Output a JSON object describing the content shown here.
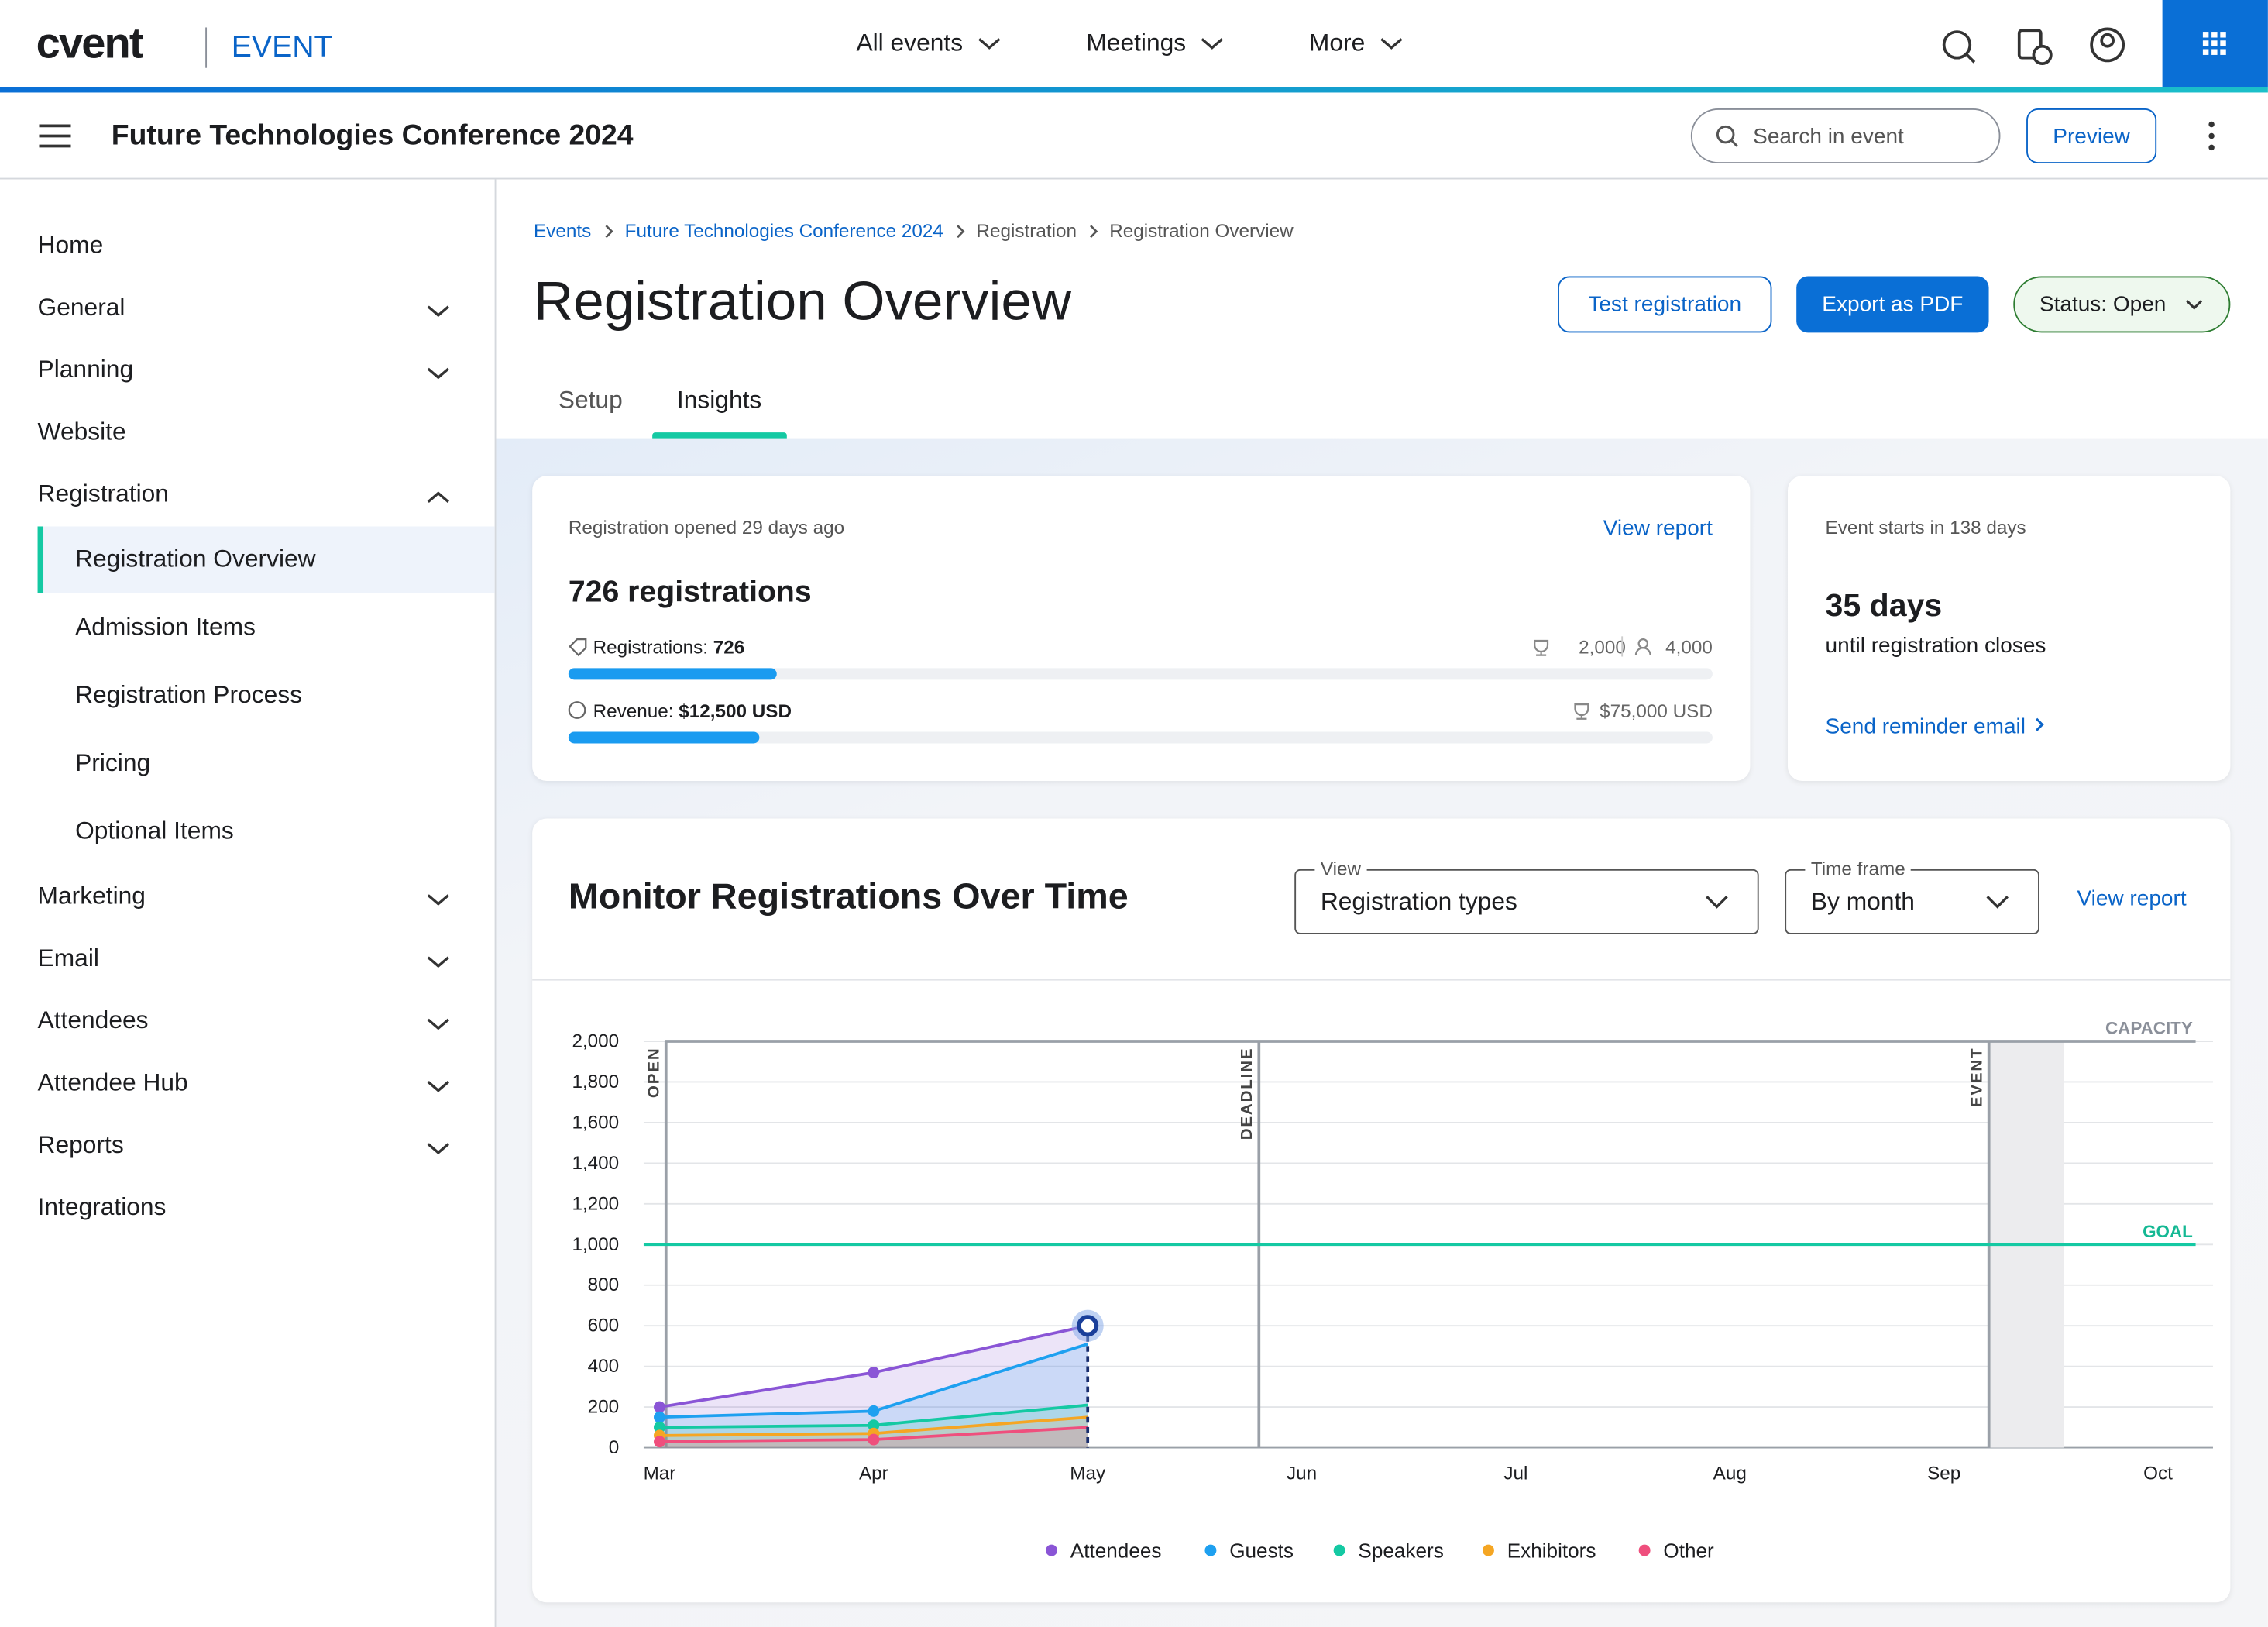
{
  "header": {
    "logo": "cvent",
    "product": "EVENT",
    "nav": [
      "All events",
      "Meetings",
      "More"
    ]
  },
  "subheader": {
    "title": "Future Technologies Conference 2024",
    "search_placeholder": "Search in event",
    "preview": "Preview"
  },
  "sidebar": {
    "items": [
      {
        "label": "Home"
      },
      {
        "label": "General",
        "chevron": "down"
      },
      {
        "label": "Planning",
        "chevron": "down"
      },
      {
        "label": "Website"
      },
      {
        "label": "Registration",
        "chevron": "up"
      },
      {
        "label": "Registration Overview",
        "sub": true,
        "active": true
      },
      {
        "label": "Admission Items",
        "sub": true
      },
      {
        "label": "Registration Process",
        "sub": true
      },
      {
        "label": "Pricing",
        "sub": true
      },
      {
        "label": "Optional Items",
        "sub": true
      },
      {
        "label": "Marketing",
        "chevron": "down"
      },
      {
        "label": "Email",
        "chevron": "down"
      },
      {
        "label": "Attendees",
        "chevron": "down"
      },
      {
        "label": "Attendee Hub",
        "chevron": "down"
      },
      {
        "label": "Reports",
        "chevron": "down"
      },
      {
        "label": "Integrations"
      }
    ]
  },
  "breadcrumb": [
    "Events",
    "Future Technologies Conference 2024",
    "Registration",
    "Registration Overview"
  ],
  "page": {
    "title": "Registration Overview",
    "buttons": [
      "Test registration",
      "Export as PDF"
    ],
    "status": "Status: Open",
    "tabs": [
      "Setup",
      "Insights"
    ],
    "active_tab": 1
  },
  "summary": {
    "opened": "Registration opened 29 days ago",
    "view_report": "View report",
    "headline": "726 registrations",
    "registrations_label": "Registrations:",
    "registrations": 726,
    "capacity": {
      "value": 2000,
      "label": "2,000"
    },
    "max": {
      "value": 4000,
      "label": "4,000"
    },
    "revenue_label": "Revenue:",
    "revenue": {
      "value": 12500,
      "label": "$12,500 USD"
    },
    "revenue_goal": {
      "value": 75000,
      "label": "$75,000 USD"
    }
  },
  "event": {
    "starts": "Event starts in 138 days",
    "days": "35 days",
    "days_sub": "until registration closes",
    "link": "Send reminder email"
  },
  "monitor": {
    "title": "Monitor Registrations Over Time",
    "view_label": "View",
    "view_value": "Registration types",
    "timeframe_label": "Time frame",
    "timeframe_value": "By month",
    "view_report": "View report"
  },
  "chart_data": {
    "type": "line",
    "categories": [
      "Mar",
      "Apr",
      "May",
      "Jun",
      "Jul",
      "Aug",
      "Sep",
      "Oct"
    ],
    "series": [
      {
        "name": "Attendees",
        "color": "#8a55d6",
        "values": [
          200,
          370,
          600,
          null,
          null,
          null,
          null,
          null
        ]
      },
      {
        "name": "Guests",
        "color": "#1ea0f0",
        "values": [
          150,
          180,
          510,
          null,
          null,
          null,
          null,
          null
        ]
      },
      {
        "name": "Speakers",
        "color": "#14c9a3",
        "values": [
          100,
          110,
          210,
          null,
          null,
          null,
          null,
          null
        ]
      },
      {
        "name": "Exhibitors",
        "color": "#f5a623",
        "values": [
          60,
          70,
          150,
          null,
          null,
          null,
          null,
          null
        ]
      },
      {
        "name": "Other",
        "color": "#ef4f7d",
        "values": [
          30,
          40,
          100,
          null,
          null,
          null,
          null,
          null
        ]
      }
    ],
    "ylim": [
      0,
      2000
    ],
    "yticks": [
      0,
      200,
      400,
      600,
      800,
      {
        "value": 1000,
        "label": "1,000"
      },
      {
        "value": 1200,
        "label": "1,200"
      },
      {
        "value": 1400,
        "label": "1,400"
      },
      {
        "value": 1600,
        "label": "1,600"
      },
      {
        "value": 1800,
        "label": "1,800"
      },
      {
        "value": 2000,
        "label": "2,000"
      }
    ],
    "grid": true,
    "markers": [
      {
        "label": "OPEN",
        "x": 0.03
      },
      {
        "label": "DEADLINE",
        "x": 2.8
      },
      {
        "label": "EVENT",
        "x": 6.21
      }
    ],
    "event_window": [
      6.21,
      6.56
    ],
    "goal": {
      "value": 1000,
      "label": "GOAL"
    },
    "capacity": {
      "value": 2000,
      "label": "CAPACITY"
    }
  }
}
